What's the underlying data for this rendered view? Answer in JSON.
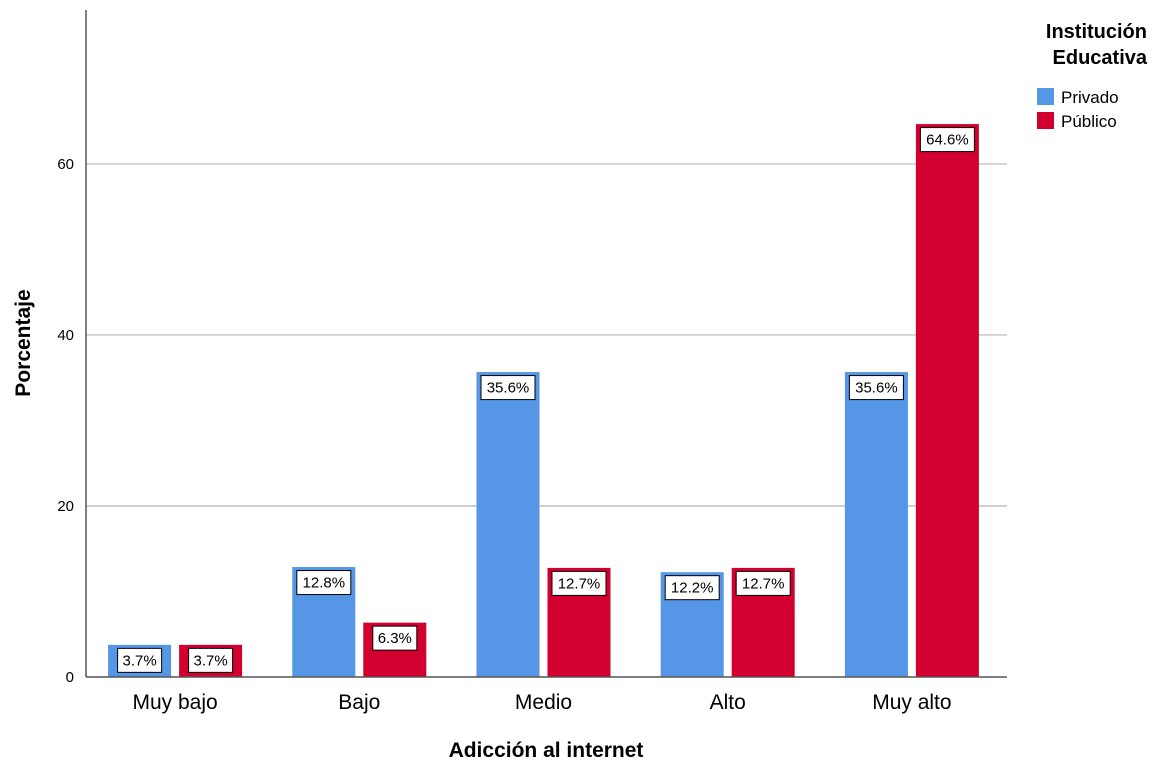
{
  "chart_data": {
    "type": "bar",
    "title": "",
    "xlabel": "Adicción al internet",
    "ylabel": "Porcentaje",
    "categories": [
      "Muy bajo",
      "Bajo",
      "Medio",
      "Alto",
      "Muy alto"
    ],
    "series": [
      {
        "name": "Privado",
        "color": "#5596e6",
        "values": [
          3.7,
          12.8,
          35.6,
          12.2,
          35.6
        ],
        "labels": [
          "3.7%",
          "12.8%",
          "35.6%",
          "12.2%",
          "35.6%"
        ]
      },
      {
        "name": "Público",
        "color": "#d2002f",
        "values": [
          3.7,
          6.3,
          12.7,
          12.7,
          64.6
        ],
        "labels": [
          "3.7%",
          "6.3%",
          "12.7%",
          "12.7%",
          "64.6%"
        ]
      }
    ],
    "ylim": [
      0,
      78
    ],
    "yticks": [
      0,
      20,
      40,
      60
    ],
    "grid": true,
    "legend": {
      "title": "Institución Educativa",
      "title_lines": [
        "Institución",
        "Educativa"
      ],
      "placement": "top-right"
    }
  }
}
